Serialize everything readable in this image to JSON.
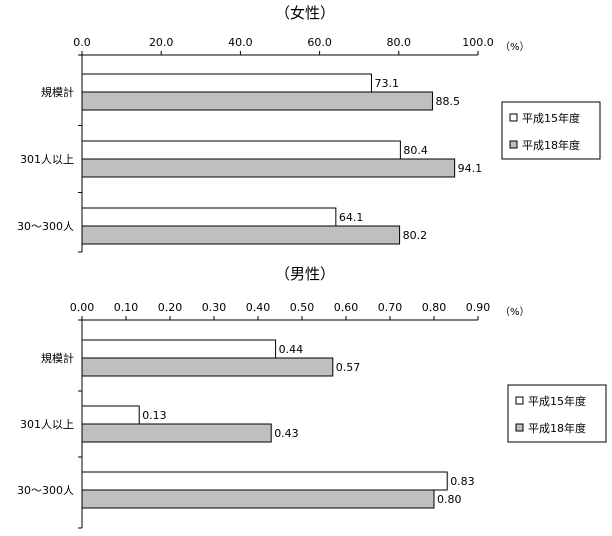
{
  "chart_data": [
    {
      "type": "bar",
      "orientation": "horizontal",
      "title": "（女性）",
      "unit": "（%）",
      "categories": [
        "規模計",
        "301人以上",
        "30～300人"
      ],
      "xlim": [
        0,
        100
      ],
      "ticks": [
        "0.0",
        "20.0",
        "40.0",
        "60.0",
        "80.0",
        "100.0"
      ],
      "series": [
        {
          "name": "平成15年度",
          "color": "#ffffff",
          "values": [
            73.1,
            80.4,
            64.1
          ],
          "labels": [
            "73.1",
            "80.4",
            "64.1"
          ]
        },
        {
          "name": "平成18年度",
          "color": "#bfbfbf",
          "values": [
            88.5,
            94.1,
            80.2
          ],
          "labels": [
            "88.5",
            "94.1",
            "80.2"
          ]
        }
      ],
      "grid": false,
      "legend": "right"
    },
    {
      "type": "bar",
      "orientation": "horizontal",
      "title": "（男性）",
      "unit": "（%）",
      "categories": [
        "規模計",
        "301人以上",
        "30～300人"
      ],
      "xlim": [
        0,
        0.9
      ],
      "ticks": [
        "0.00",
        "0.10",
        "0.20",
        "0.30",
        "0.40",
        "0.50",
        "0.60",
        "0.70",
        "0.80",
        "0.90"
      ],
      "series": [
        {
          "name": "平成15年度",
          "color": "#ffffff",
          "values": [
            0.44,
            0.13,
            0.83
          ],
          "labels": [
            "0.44",
            "0.13",
            "0.83"
          ]
        },
        {
          "name": "平成18年度",
          "color": "#bfbfbf",
          "values": [
            0.57,
            0.43,
            0.8
          ],
          "labels": [
            "0.57",
            "0.43",
            "0.80"
          ]
        }
      ],
      "grid": false,
      "legend": "right"
    }
  ]
}
